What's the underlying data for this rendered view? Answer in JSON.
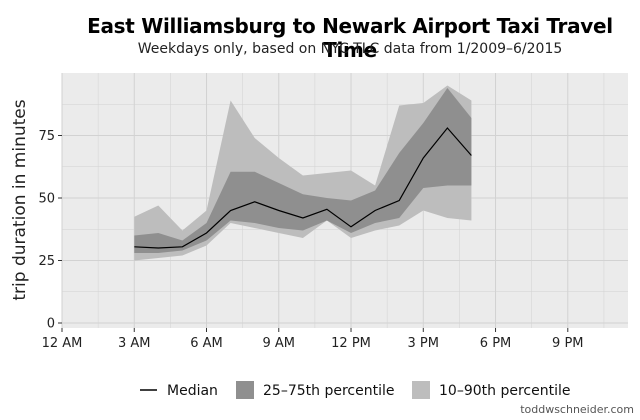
{
  "chart_data": {
    "type": "area",
    "title": "East Williamsburg to Newark Airport Taxi Travel Time",
    "subtitle": "Weekdays only, based on NYC TLC data from 1/2009–6/2015",
    "xlabel": "",
    "ylabel": "trip duration in minutes",
    "x_unit": "hour of day",
    "xlim": [
      0,
      23.5
    ],
    "ylim": [
      -2,
      100
    ],
    "x_ticks": [
      0,
      3,
      6,
      9,
      12,
      15,
      18,
      21
    ],
    "x_tick_labels": [
      "12 AM",
      "3 AM",
      "6 AM",
      "9 AM",
      "12 PM",
      "3 PM",
      "6 PM",
      "9 PM"
    ],
    "y_ticks": [
      0,
      25,
      50,
      75
    ],
    "y_tick_labels": [
      "0",
      "25",
      "50",
      "75"
    ],
    "hours": [
      3,
      4,
      5,
      6,
      7,
      8,
      9,
      10,
      11,
      12,
      13,
      14,
      15,
      16,
      17
    ],
    "series": [
      {
        "name": "Median",
        "values": [
          30.5,
          30.0,
          30.5,
          36,
          45,
          48.5,
          45,
          42,
          45.5,
          38.5,
          45,
          49,
          66,
          78,
          67
        ]
      },
      {
        "name": "25–75th percentile",
        "lower": [
          28,
          28,
          29,
          33,
          41,
          40,
          38,
          37,
          41,
          36,
          40,
          42,
          54,
          55,
          55
        ],
        "upper": [
          35,
          36,
          33,
          40,
          60.5,
          60.5,
          56,
          51.5,
          50,
          49,
          53,
          68,
          80,
          94,
          82
        ]
      },
      {
        "name": "10–90th percentile",
        "lower": [
          25,
          26,
          27,
          31,
          40,
          38,
          36,
          34,
          41,
          34,
          37,
          39,
          45,
          42,
          41
        ],
        "upper": [
          42.5,
          47,
          37,
          45,
          89,
          74,
          66,
          59,
          60,
          61,
          55,
          87,
          88,
          95,
          89
        ]
      }
    ],
    "legend": {
      "position": "bottom",
      "items": [
        "Median",
        "25–75th percentile",
        "10–90th percentile"
      ]
    },
    "colors": {
      "panel_bg": "#ebebeb",
      "grid": "#d2d2d2",
      "band_outer": "#bdbdbd",
      "band_inner": "#8f8f8f",
      "median": "#000000"
    },
    "grid": true
  },
  "credit": "toddwschneider.com"
}
